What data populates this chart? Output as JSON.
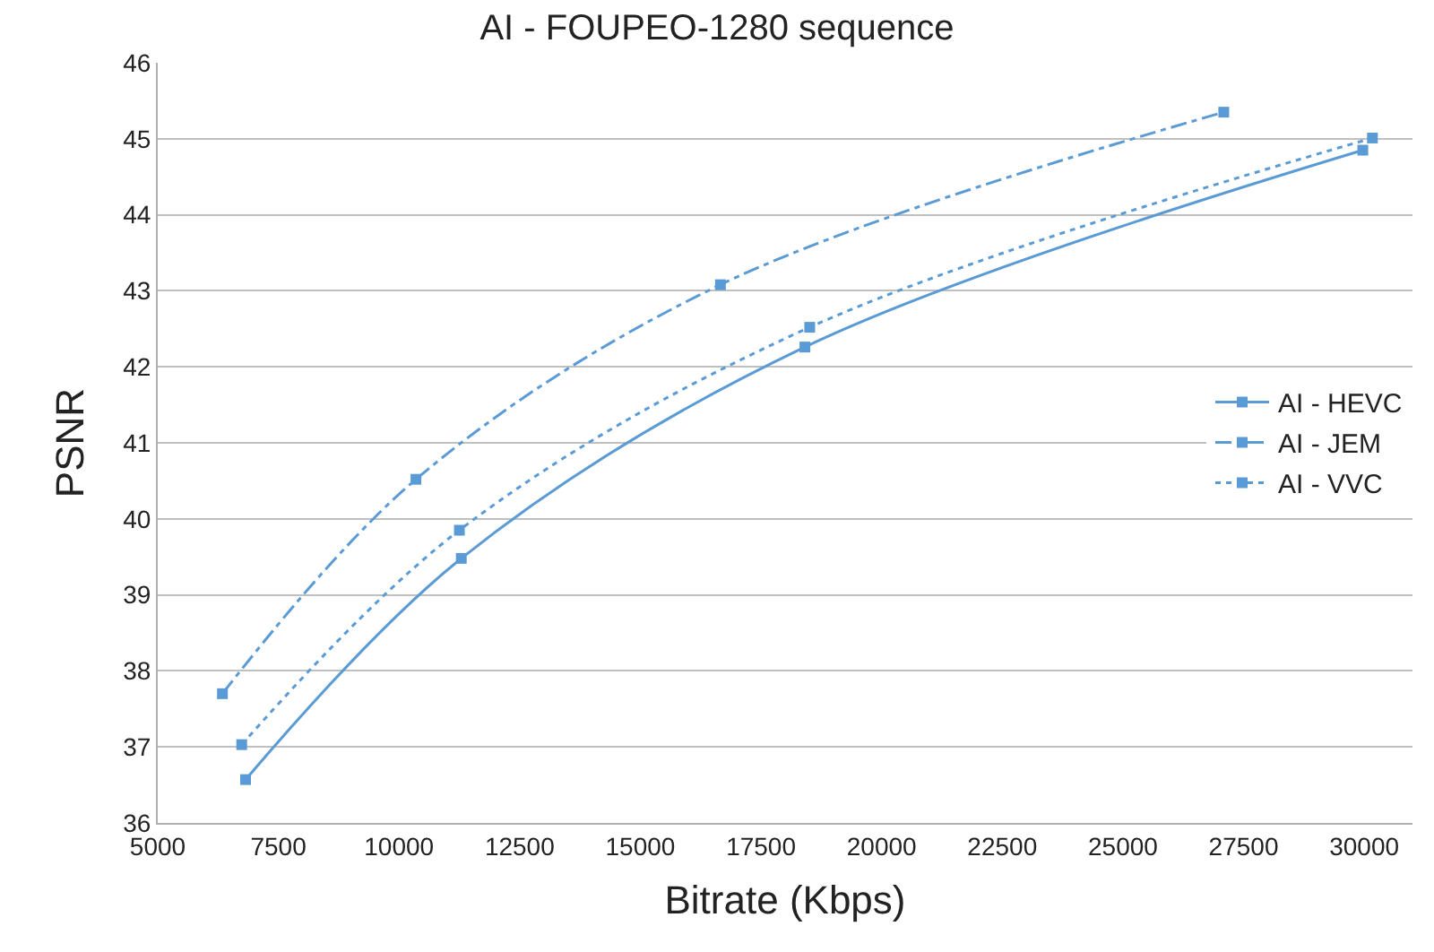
{
  "chart_data": {
    "type": "line",
    "title": "AI - FOUPEO-1280 sequence",
    "xlabel": "Bitrate (Kbps)",
    "ylabel": "PSNR",
    "xlim": [
      5000,
      31000
    ],
    "xticks": [
      5000,
      7500,
      10000,
      12500,
      15000,
      17500,
      20000,
      22500,
      25000,
      27500,
      30000
    ],
    "ylim": [
      36,
      46
    ],
    "yticks": [
      36,
      37,
      38,
      39,
      40,
      41,
      42,
      43,
      44,
      45,
      46
    ],
    "grid": "y",
    "legend": "right",
    "marker": "square",
    "series": [
      {
        "name": "AI - HEVC",
        "color": "#5b9bd5",
        "line_style": "solid",
        "x": [
          6820,
          11290,
          18410,
          29970
        ],
        "values": [
          36.57,
          39.48,
          42.26,
          44.85
        ]
      },
      {
        "name": "AI - JEM",
        "color": "#5b9bd5",
        "line_style": "dashdot",
        "x": [
          6340,
          10350,
          16660,
          27090
        ],
        "values": [
          37.7,
          40.52,
          43.08,
          45.35
        ]
      },
      {
        "name": "AI - VVC",
        "color": "#5b9bd5",
        "line_style": "dotted",
        "x": [
          6740,
          11250,
          18510,
          30170
        ],
        "values": [
          37.03,
          39.85,
          42.52,
          45.01
        ]
      }
    ]
  }
}
